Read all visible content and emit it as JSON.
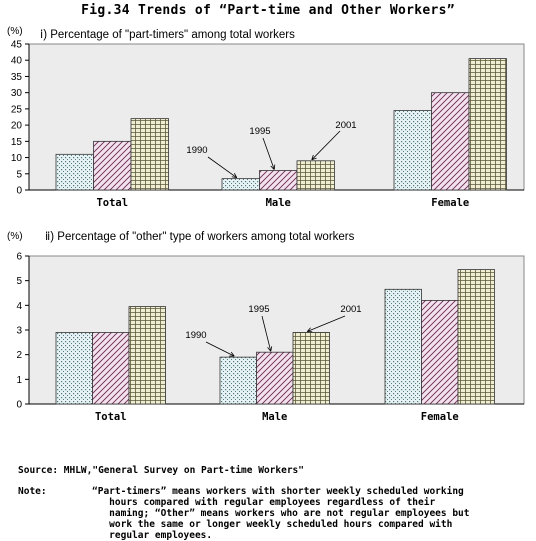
{
  "figure": {
    "title": "Fig.34  Trends of “Part-time and Other Workers”"
  },
  "chart_data": [
    {
      "type": "bar",
      "title": "ⅰ) Percentage of \"part-timers\" among total workers",
      "unit": "(%)",
      "categories": [
        "Total",
        "Male",
        "Female"
      ],
      "series": [
        {
          "name": "1990",
          "values": [
            11,
            3.5,
            24.5
          ]
        },
        {
          "name": "1995",
          "values": [
            15,
            6,
            30
          ]
        },
        {
          "name": "2001",
          "values": [
            22,
            9,
            40.5
          ]
        }
      ],
      "ylim": [
        0,
        45
      ],
      "yticks": [
        0,
        5,
        10,
        15,
        20,
        25,
        30,
        35,
        40,
        45
      ],
      "grid": false,
      "legend": "series labels with arrows pointing to Male bars"
    },
    {
      "type": "bar",
      "title": "ⅱ) Percentage of \"other\" type of workers among total workers",
      "unit": "(%)",
      "categories": [
        "Total",
        "Male",
        "Female"
      ],
      "series": [
        {
          "name": "1990",
          "values": [
            2.9,
            1.9,
            4.65
          ]
        },
        {
          "name": "1995",
          "values": [
            2.9,
            2.1,
            4.2
          ]
        },
        {
          "name": "2001",
          "values": [
            3.95,
            2.9,
            5.45
          ]
        }
      ],
      "ylim": [
        0,
        6
      ],
      "yticks": [
        0,
        1,
        2,
        3,
        4,
        5,
        6
      ],
      "grid": false,
      "legend": "series labels with arrows pointing to Male bars"
    }
  ],
  "footer": {
    "source": "Source: MHLW,\"General Survey on Part-time Workers\"",
    "note_label": "Note:",
    "note_lines": [
      "“Part-timers” means workers with shorter weekly scheduled working",
      "   hours compared with regular employees regardless of their",
      "   naming; “Other” means workers who are not regular employees but",
      "   work the same or longer weekly scheduled hours compared with",
      "   regular employees."
    ]
  },
  "colors": {
    "panel": "#ececec",
    "s1990": "#e6f2f4",
    "s1995": "#f3e2ee",
    "s2001": "#efedd2"
  }
}
